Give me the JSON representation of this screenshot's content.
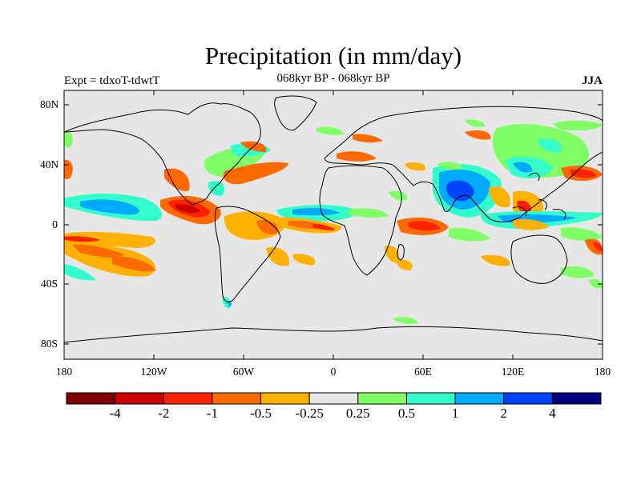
{
  "title": "Precipitation (in mm/day)",
  "subtitle": "068kyr BP - 068kyr BP",
  "left_label": "Expt = tdxoT-tdwtT",
  "season": "JJA",
  "lat_labels": [
    "80N",
    "40N",
    "0",
    "40S",
    "80S"
  ],
  "lon_labels": [
    "180",
    "120W",
    "60W",
    "0",
    "60E",
    "120E",
    "180"
  ],
  "colorbar": {
    "colors": [
      "#7f0000",
      "#cc0000",
      "#ff2200",
      "#ff6a00",
      "#ffb000",
      "#e6e6e6",
      "#80ff66",
      "#33ffcc",
      "#00aaff",
      "#0044ff",
      "#00007f"
    ],
    "labels": [
      "-4",
      "-2",
      "-1",
      "-0.5",
      "-0.25",
      "0.25",
      "0.5",
      "1",
      "2",
      "4"
    ]
  }
}
